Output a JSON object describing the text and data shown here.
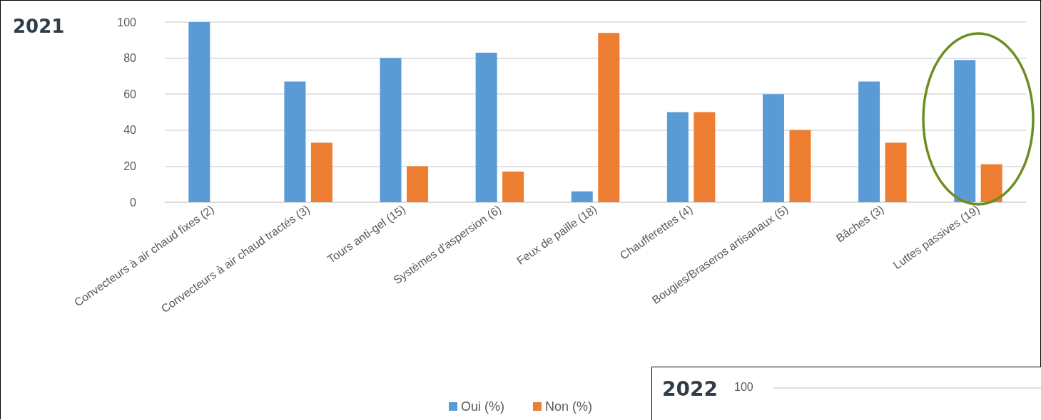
{
  "chart_data": [
    {
      "type": "bar",
      "title": "2021",
      "categories": [
        "Convecteurs à air chaud fixes (2)",
        "Convecteurs à air chaud tractés (3)",
        "Tours anti-gel (15)",
        "Systèmes d'aspersion (6)",
        "Feux de paille (18)",
        "Chaufferettes (4)",
        "Bougies/Braseros artisanaux (5)",
        "Bâches (3)",
        "Luttes passives (19)"
      ],
      "series": [
        {
          "name": "Oui (%)",
          "color": "#5b9bd5",
          "values": [
            100,
            67,
            80,
            83,
            6,
            50,
            60,
            67,
            79
          ]
        },
        {
          "name": "Non (%)",
          "color": "#ed7d31",
          "values": [
            0,
            33,
            20,
            17,
            94,
            50,
            40,
            33,
            21
          ]
        }
      ],
      "ylim": [
        0,
        100
      ],
      "yticks": [
        0,
        20,
        40,
        60,
        80,
        100
      ],
      "grid": "y",
      "legend": "bottom"
    },
    {
      "type": "other",
      "title": "2022",
      "annotations": [
        "100"
      ]
    }
  ]
}
